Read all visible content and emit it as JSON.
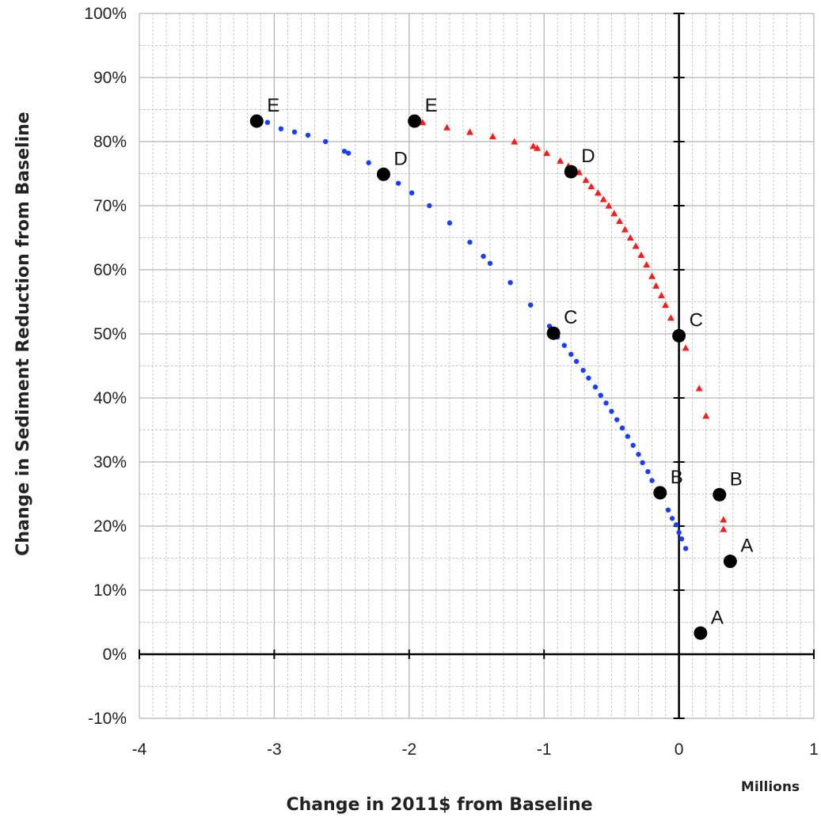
{
  "chart_data": {
    "type": "scatter",
    "title": "",
    "xlabel": "Change in 2011$ from Baseline",
    "ylabel": "Change in Sediment Reduction from Baseline",
    "x_units_label": "Millions",
    "xlim": [
      -4,
      1
    ],
    "ylim": [
      -0.1,
      1.0
    ],
    "x_major_ticks": [
      -4,
      -3,
      -2,
      -1,
      0,
      1
    ],
    "x_tick_labels": [
      "-4",
      "-3",
      "-2",
      "-1",
      "0",
      "1"
    ],
    "x_minor_step": 0.1,
    "y_major_ticks": [
      -0.1,
      0,
      0.1,
      0.2,
      0.3,
      0.4,
      0.5,
      0.6,
      0.7,
      0.8,
      0.9,
      1.0
    ],
    "y_tick_labels": [
      "-10%",
      "0%",
      "10%",
      "20%",
      "30%",
      "40%",
      "50%",
      "60%",
      "70%",
      "80%",
      "90%",
      "100%"
    ],
    "y_minor_step": 0.05,
    "grid": true,
    "legend": "none",
    "colors": {
      "blue_series": "#1a3cff",
      "red_series": "#ff1a1a",
      "labeled_points": "#000000",
      "grid": "#c8c8c8"
    },
    "series": [
      {
        "color": "#1a3cff",
        "marker": "dot",
        "points": [
          [
            -3.05,
            0.83
          ],
          [
            -2.95,
            0.82
          ],
          [
            -2.85,
            0.815
          ],
          [
            -2.75,
            0.81
          ],
          [
            -2.62,
            0.8
          ],
          [
            -2.48,
            0.785
          ],
          [
            -2.45,
            0.782
          ],
          [
            -2.3,
            0.767
          ],
          [
            -2.08,
            0.735
          ],
          [
            -1.98,
            0.72
          ],
          [
            -1.85,
            0.7
          ],
          [
            -1.7,
            0.673
          ],
          [
            -1.55,
            0.643
          ],
          [
            -1.45,
            0.621
          ],
          [
            -1.4,
            0.61
          ],
          [
            -1.25,
            0.58
          ],
          [
            -1.1,
            0.545
          ],
          [
            -0.96,
            0.512
          ],
          [
            -0.9,
            0.495
          ],
          [
            -0.85,
            0.482
          ],
          [
            -0.8,
            0.468
          ],
          [
            -0.76,
            0.457
          ],
          [
            -0.71,
            0.443
          ],
          [
            -0.67,
            0.431
          ],
          [
            -0.62,
            0.417
          ],
          [
            -0.58,
            0.404
          ],
          [
            -0.54,
            0.392
          ],
          [
            -0.5,
            0.379
          ],
          [
            -0.46,
            0.366
          ],
          [
            -0.42,
            0.353
          ],
          [
            -0.38,
            0.34
          ],
          [
            -0.34,
            0.326
          ],
          [
            -0.3,
            0.312
          ],
          [
            -0.27,
            0.299
          ],
          [
            -0.23,
            0.285
          ],
          [
            -0.2,
            0.271
          ],
          [
            -0.16,
            0.257
          ],
          [
            -0.08,
            0.225
          ],
          [
            -0.05,
            0.212
          ],
          [
            -0.02,
            0.202
          ],
          [
            0.0,
            0.19
          ],
          [
            0.02,
            0.18
          ],
          [
            0.05,
            0.165
          ]
        ]
      },
      {
        "color": "#ff1a1a",
        "marker": "triangle",
        "points": [
          [
            -1.9,
            0.83
          ],
          [
            -1.72,
            0.822
          ],
          [
            -1.55,
            0.815
          ],
          [
            -1.38,
            0.808
          ],
          [
            -1.22,
            0.8
          ],
          [
            -1.08,
            0.793
          ],
          [
            -1.05,
            0.79
          ],
          [
            -0.98,
            0.782
          ],
          [
            -0.88,
            0.77
          ],
          [
            -0.82,
            0.762
          ],
          [
            -0.74,
            0.752
          ],
          [
            -0.69,
            0.74
          ],
          [
            -0.65,
            0.73
          ],
          [
            -0.6,
            0.72
          ],
          [
            -0.56,
            0.71
          ],
          [
            -0.52,
            0.7
          ],
          [
            -0.48,
            0.688
          ],
          [
            -0.44,
            0.676
          ],
          [
            -0.4,
            0.663
          ],
          [
            -0.36,
            0.65
          ],
          [
            -0.32,
            0.637
          ],
          [
            -0.28,
            0.623
          ],
          [
            -0.24,
            0.608
          ],
          [
            -0.2,
            0.59
          ],
          [
            -0.17,
            0.575
          ],
          [
            -0.13,
            0.56
          ],
          [
            -0.1,
            0.545
          ],
          [
            -0.06,
            0.525
          ],
          [
            0.05,
            0.478
          ],
          [
            0.15,
            0.415
          ],
          [
            0.2,
            0.372
          ],
          [
            0.33,
            0.21
          ],
          [
            0.33,
            0.195
          ]
        ]
      },
      {
        "color": "#000000",
        "marker": "large-dot",
        "points": [
          {
            "x": -3.13,
            "y": 0.832,
            "label": "E"
          },
          {
            "x": -2.19,
            "y": 0.749,
            "label": "D"
          },
          {
            "x": -0.93,
            "y": 0.501,
            "label": "C"
          },
          {
            "x": -0.14,
            "y": 0.252,
            "label": "B"
          },
          {
            "x": 0.16,
            "y": 0.033,
            "label": "A"
          },
          {
            "x": -1.96,
            "y": 0.832,
            "label": "E"
          },
          {
            "x": -0.8,
            "y": 0.753,
            "label": "D"
          },
          {
            "x": 0.0,
            "y": 0.497,
            "label": "C"
          },
          {
            "x": 0.3,
            "y": 0.249,
            "label": "B"
          },
          {
            "x": 0.38,
            "y": 0.145,
            "label": "A"
          }
        ]
      }
    ]
  }
}
